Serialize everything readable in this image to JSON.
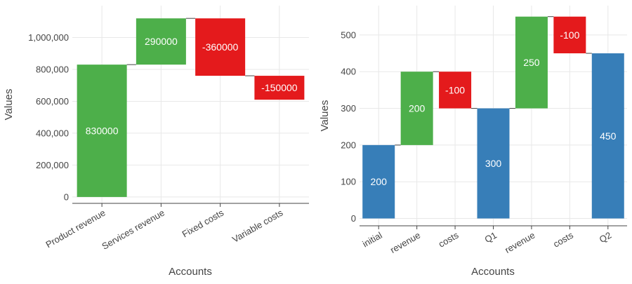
{
  "colors": {
    "increase": "#4daf4a",
    "decrease": "#e41a1c",
    "total": "#377eb8"
  },
  "chart_data": [
    {
      "type": "waterfall",
      "xlabel": "Accounts",
      "ylabel": "Values",
      "ylim": [
        -40000,
        1200000
      ],
      "yticks": [
        0,
        200000,
        400000,
        600000,
        800000,
        1000000
      ],
      "ytick_labels": [
        "0",
        "200,000",
        "400,000",
        "600,000",
        "800,000",
        "1,000,000"
      ],
      "grid": true,
      "bars": [
        {
          "category": "Product revenue",
          "kind": "increase",
          "value": 830000,
          "label": "830000"
        },
        {
          "category": "Services revenue",
          "kind": "increase",
          "value": 290000,
          "label": "290000"
        },
        {
          "category": "Fixed costs",
          "kind": "decrease",
          "value": -360000,
          "label": "-360000"
        },
        {
          "category": "Variable costs",
          "kind": "decrease",
          "value": -150000,
          "label": "-150000"
        }
      ]
    },
    {
      "type": "waterfall",
      "xlabel": "Accounts",
      "ylabel": "Values",
      "ylim": [
        -20,
        580
      ],
      "yticks": [
        0,
        100,
        200,
        300,
        400,
        500
      ],
      "ytick_labels": [
        "0",
        "100",
        "200",
        "300",
        "400",
        "500"
      ],
      "grid": true,
      "bars": [
        {
          "category": "initial",
          "kind": "total",
          "value": 200,
          "label": "200"
        },
        {
          "category": "revenue",
          "kind": "increase",
          "value": 200,
          "label": "200"
        },
        {
          "category": "costs",
          "kind": "decrease",
          "value": -100,
          "label": "-100"
        },
        {
          "category": "Q1",
          "kind": "total",
          "value": 300,
          "label": "300"
        },
        {
          "category": "revenue",
          "kind": "increase",
          "value": 250,
          "label": "250"
        },
        {
          "category": "costs",
          "kind": "decrease",
          "value": -100,
          "label": "-100"
        },
        {
          "category": "Q2",
          "kind": "total",
          "value": 450,
          "label": "450"
        }
      ]
    }
  ]
}
